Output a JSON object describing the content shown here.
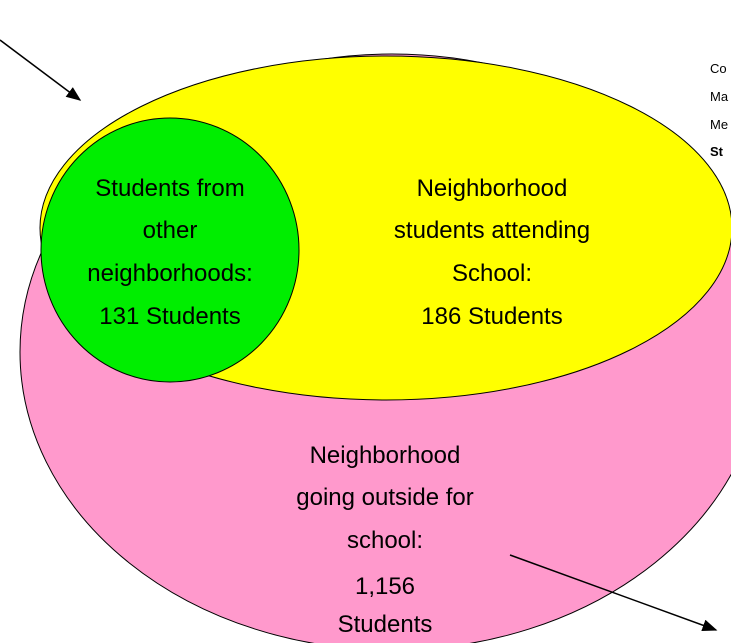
{
  "notes": [
    "Co",
    "Ma",
    "Me",
    "St"
  ],
  "regions": [
    {
      "label": [
        "Students from",
        "other",
        "neighborhoods:"
      ],
      "count": "131 Students"
    },
    {
      "label": [
        "Neighborhood",
        "students attending",
        "School:"
      ],
      "count": "186 Students"
    },
    {
      "label": [
        "Neighborhood",
        "going  outside for",
        "school:"
      ],
      "count": [
        "1,156",
        "Students"
      ]
    }
  ]
}
